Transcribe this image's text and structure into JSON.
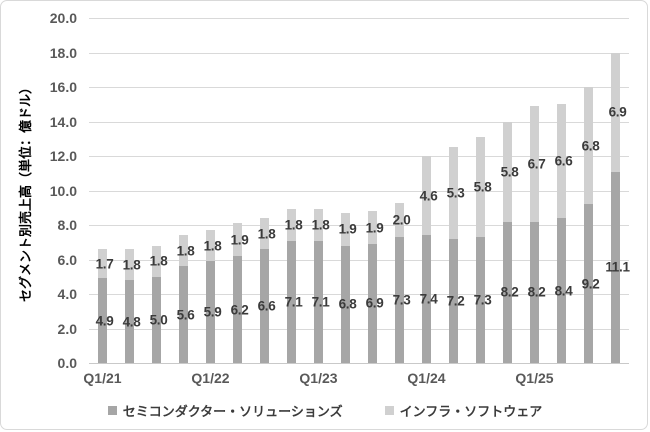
{
  "chart_data": {
    "type": "bar",
    "stacked": true,
    "title": "",
    "ylabel": "セグメント別売上高（単位：億ドル）",
    "xlabel": "",
    "ylim": [
      0,
      20
    ],
    "ytick_step": 2,
    "y_tick_labels": [
      "0.0",
      "2.0",
      "4.0",
      "6.0",
      "8.0",
      "10.0",
      "12.0",
      "14.0",
      "16.0",
      "18.0",
      "20.0"
    ],
    "x_ticks": [
      {
        "index": 0,
        "label": "Q1/21"
      },
      {
        "index": 4,
        "label": "Q1/22"
      },
      {
        "index": 8,
        "label": "Q1/23"
      },
      {
        "index": 12,
        "label": "Q1/24"
      },
      {
        "index": 16,
        "label": "Q1/25"
      }
    ],
    "num_bars": 20,
    "series": [
      {
        "name": "セミコンダクター・ソリューションズ",
        "color": "#a6a6a6",
        "values": [
          4.9,
          4.8,
          5.0,
          5.6,
          5.9,
          6.2,
          6.6,
          7.1,
          7.1,
          6.8,
          6.9,
          7.3,
          7.4,
          7.2,
          7.3,
          8.2,
          8.2,
          8.4,
          9.2,
          11.1
        ]
      },
      {
        "name": "インフラ・ソフトウェア",
        "color": "#d0d0d0",
        "values": [
          1.7,
          1.8,
          1.8,
          1.8,
          1.8,
          1.9,
          1.8,
          1.8,
          1.8,
          1.9,
          1.9,
          2.0,
          4.6,
          5.3,
          5.8,
          5.8,
          6.7,
          6.6,
          6.8,
          6.9
        ]
      }
    ],
    "grid": true,
    "legend_position": "bottom",
    "style": {
      "gridline_color": "#d9d9d9",
      "axis_line_color": "#c9c9c9",
      "axis_text_color": "#595959",
      "data_label_color": "#3b3b3b",
      "border_color": "#d9d9d9",
      "background": "#ffffff"
    }
  }
}
